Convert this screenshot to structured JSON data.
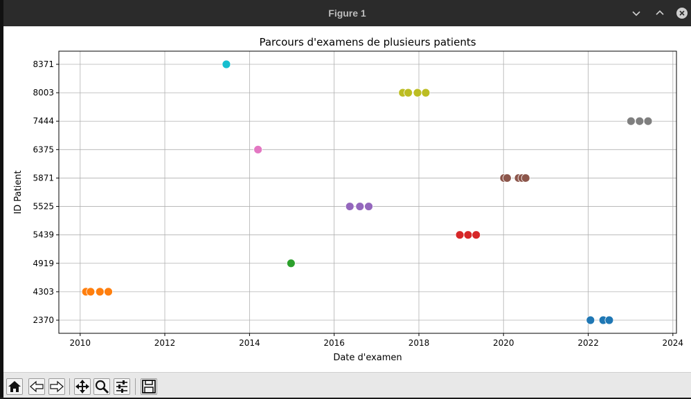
{
  "window": {
    "title": "Figure 1",
    "controls": [
      "minimize",
      "maximize",
      "close"
    ]
  },
  "toolbar": {
    "buttons": [
      {
        "name": "home-button",
        "icon": "home-icon",
        "glyph": "⌂"
      },
      {
        "name": "back-button",
        "icon": "arrow-left-icon",
        "glyph": "⇦"
      },
      {
        "name": "forward-button",
        "icon": "arrow-right-icon",
        "glyph": "⇨"
      },
      {
        "name": "pan-button",
        "icon": "move-icon",
        "glyph": "✥"
      },
      {
        "name": "zoom-button",
        "icon": "magnifier-icon",
        "glyph": "⚲"
      },
      {
        "name": "configure-button",
        "icon": "sliders-icon",
        "glyph": "☰"
      },
      {
        "name": "save-button",
        "icon": "floppy-disk-icon",
        "glyph": "🖫"
      }
    ]
  },
  "chart_data": {
    "type": "scatter",
    "title": "Parcours d'examens de plusieurs patients",
    "xlabel": "Date d'examen",
    "ylabel": "ID Patient",
    "x_ticks": [
      "2010",
      "2012",
      "2014",
      "2016",
      "2018",
      "2020",
      "2022",
      "2024"
    ],
    "xlim": [
      "2009-07-01",
      "2024-02-01"
    ],
    "y_categories": [
      "2370",
      "4303",
      "4919",
      "5439",
      "5525",
      "5871",
      "6375",
      "7444",
      "8003",
      "8371"
    ],
    "grid": true,
    "series": [
      {
        "category": "2370",
        "color": "#1f77b4",
        "x": [
          "2022-01-20",
          "2022-05-10",
          "2022-07-01"
        ]
      },
      {
        "category": "4303",
        "color": "#ff7f0e",
        "x": [
          "2010-02-20",
          "2010-04-01",
          "2010-06-20",
          "2010-09-01"
        ]
      },
      {
        "category": "4919",
        "color": "#2ca02c",
        "x": [
          "2014-12-25"
        ]
      },
      {
        "category": "5439",
        "color": "#d62728",
        "x": [
          "2018-12-20",
          "2019-03-01",
          "2019-05-10"
        ]
      },
      {
        "category": "5525",
        "color": "#9467bd",
        "x": [
          "2016-05-15",
          "2016-08-10",
          "2016-10-25"
        ]
      },
      {
        "category": "5871",
        "color": "#8c564b",
        "x": [
          "2020-01-05",
          "2020-02-01",
          "2020-05-10",
          "2020-06-10",
          "2020-07-10"
        ]
      },
      {
        "category": "6375",
        "color": "#e377c2",
        "x": [
          "2014-03-15"
        ]
      },
      {
        "category": "7444",
        "color": "#7f7f7f",
        "x": [
          "2023-01-05",
          "2023-03-20",
          "2023-06-01"
        ]
      },
      {
        "category": "8003",
        "color": "#bcbd22",
        "x": [
          "2017-08-15",
          "2017-10-01",
          "2017-12-20",
          "2018-03-01"
        ]
      },
      {
        "category": "8371",
        "color": "#17becf",
        "x": [
          "2013-06-15"
        ]
      }
    ]
  }
}
